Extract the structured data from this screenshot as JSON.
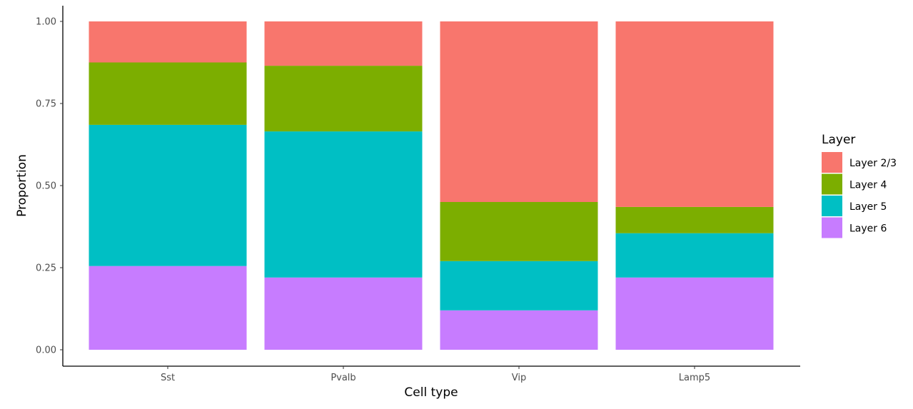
{
  "chart_data": {
    "type": "bar",
    "stacked": true,
    "title": "",
    "xlabel": "Cell type",
    "ylabel": "Proportion",
    "ylim": [
      0,
      1
    ],
    "yticks": [
      "0.00",
      "0.25",
      "0.50",
      "0.75",
      "1.00"
    ],
    "ytick_values": [
      0,
      0.25,
      0.5,
      0.75,
      1
    ],
    "categories": [
      "Sst",
      "Pvalb",
      "Vip",
      "Lamp5"
    ],
    "series": [
      {
        "name": "Layer 6",
        "color": "#C77CFF",
        "values": [
          0.255,
          0.22,
          0.12,
          0.22
        ]
      },
      {
        "name": "Layer 5",
        "color": "#00BFC4",
        "values": [
          0.43,
          0.445,
          0.15,
          0.135
        ]
      },
      {
        "name": "Layer 4",
        "color": "#7CAE00",
        "values": [
          0.19,
          0.2,
          0.18,
          0.08
        ]
      },
      {
        "name": "Layer 2/3",
        "color": "#F8766D",
        "values": [
          0.125,
          0.135,
          0.55,
          0.565
        ]
      }
    ],
    "legend": {
      "title": "Layer",
      "position": "right",
      "entries": [
        {
          "label": "Layer 2/3",
          "color": "#F8766D"
        },
        {
          "label": "Layer 4",
          "color": "#7CAE00"
        },
        {
          "label": "Layer 5",
          "color": "#00BFC4"
        },
        {
          "label": "Layer 6",
          "color": "#C77CFF"
        }
      ]
    },
    "grid": false
  }
}
